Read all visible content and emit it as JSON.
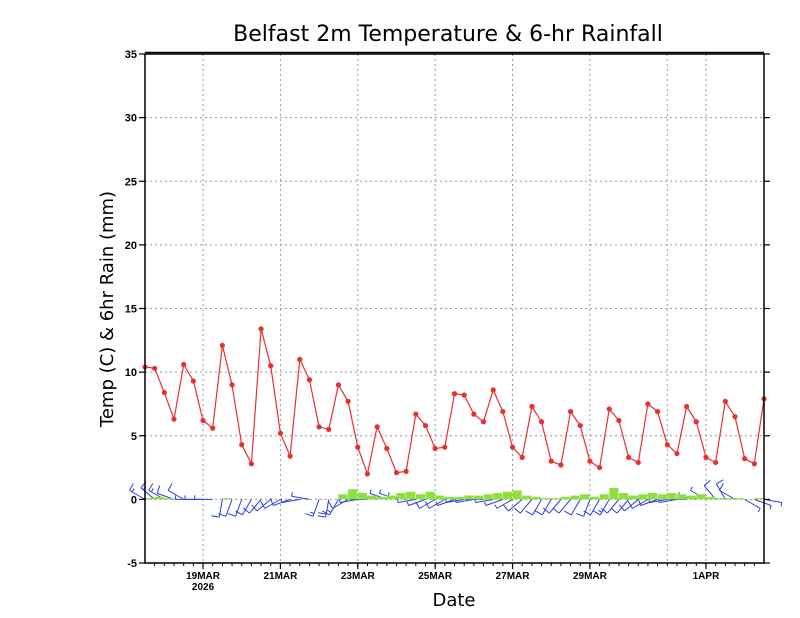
{
  "chart_data": {
    "type": "line",
    "title": "Belfast 2m Temperature & 6-hr Rainfall",
    "xlabel": "Date",
    "ylabel": "Temp (C) & 6hr Rain (mm)",
    "ylim": [
      -5,
      35
    ],
    "yticks": [
      -5,
      0,
      5,
      10,
      15,
      20,
      25,
      30,
      35
    ],
    "ytick_labels": [
      "-5",
      "0",
      "5",
      "10",
      "15",
      "20",
      "25",
      "30",
      "35"
    ],
    "x_range_days": [
      0,
      16.0
    ],
    "x_unit": "days since 17MAR 12Z",
    "xticks": [
      {
        "day": 1.5,
        "label": "19MAR",
        "sublabel": "2026"
      },
      {
        "day": 3.5,
        "label": "21MAR"
      },
      {
        "day": 5.5,
        "label": "23MAR"
      },
      {
        "day": 7.5,
        "label": "25MAR"
      },
      {
        "day": 9.5,
        "label": "27MAR"
      },
      {
        "day": 11.5,
        "label": "29MAR"
      },
      {
        "day": 14.5,
        "label": "1APR"
      }
    ],
    "grid_days": [
      1.5,
      3.5,
      5.5,
      7.5,
      9.5,
      11.5,
      13.5,
      14.5
    ],
    "temperature_series": {
      "name": "2m Temperature",
      "color": "#e8302e",
      "step_days": 0.25,
      "values": [
        10.4,
        10.3,
        8.4,
        6.3,
        10.6,
        9.3,
        6.2,
        5.6,
        12.1,
        9.0,
        4.3,
        2.8,
        13.4,
        10.5,
        5.2,
        3.4,
        11.0,
        9.4,
        5.7,
        5.5,
        9.0,
        7.7,
        4.1,
        2.0,
        5.7,
        4.0,
        2.1,
        2.2,
        6.7,
        5.8,
        4.0,
        4.1,
        8.3,
        8.2,
        6.7,
        6.1,
        8.6,
        6.9,
        4.1,
        3.3,
        7.3,
        6.1,
        3.0,
        2.7,
        6.9,
        5.8,
        3.0,
        2.5,
        7.1,
        6.2,
        3.3,
        2.9,
        7.5,
        6.9,
        4.3,
        3.6,
        7.3,
        6.1,
        3.3,
        2.9,
        7.7,
        6.5,
        3.2,
        2.8,
        7.9
      ]
    },
    "rain_series": {
      "name": "6-hr Rainfall",
      "color": "#8ee03c",
      "step_days": 0.25,
      "values": [
        0.1,
        0.2,
        0.1,
        0.0,
        0.0,
        0.0,
        0.0,
        0.0,
        0.1,
        0.0,
        0.0,
        0.0,
        0.0,
        0.0,
        0.0,
        0.0,
        0.0,
        0.0,
        0.0,
        0.0,
        0.4,
        0.8,
        0.5,
        0.3,
        0.2,
        0.3,
        0.5,
        0.6,
        0.4,
        0.6,
        0.3,
        0.2,
        0.2,
        0.3,
        0.3,
        0.4,
        0.5,
        0.6,
        0.7,
        0.3,
        0.2,
        0.1,
        0.1,
        0.2,
        0.3,
        0.4,
        0.2,
        0.4,
        0.9,
        0.5,
        0.3,
        0.4,
        0.5,
        0.4,
        0.5,
        0.4,
        0.3,
        0.4,
        0.2,
        0.1,
        0.1,
        0.1,
        0.0,
        0.1
      ]
    },
    "wind_barbs": {
      "name": "Wind barbs",
      "color": "#2a3de0",
      "baseline_value": 0,
      "step_days": 0.25,
      "direction_deg": [
        300,
        310,
        300,
        290,
        300,
        270,
        270,
        270,
        190,
        200,
        200,
        210,
        220,
        230,
        240,
        250,
        260,
        280,
        200,
        190,
        210,
        240,
        260,
        270,
        280,
        290,
        290,
        280,
        260,
        250,
        240,
        240,
        250,
        260,
        260,
        270,
        260,
        250,
        240,
        230,
        220,
        210,
        210,
        220,
        220,
        210,
        200,
        210,
        210,
        220,
        220,
        230,
        240,
        250,
        260,
        260,
        270,
        280,
        300,
        320,
        330,
        300,
        120,
        110,
        100
      ],
      "speed_kt": [
        15,
        18,
        15,
        12,
        10,
        8,
        6,
        6,
        10,
        12,
        10,
        10,
        12,
        14,
        12,
        10,
        8,
        8,
        18,
        20,
        15,
        12,
        10,
        8,
        8,
        6,
        6,
        6,
        6,
        8,
        10,
        10,
        8,
        6,
        6,
        6,
        6,
        6,
        8,
        10,
        12,
        12,
        12,
        10,
        10,
        12,
        14,
        14,
        16,
        14,
        14,
        12,
        12,
        10,
        10,
        8,
        8,
        8,
        8,
        10,
        10,
        10,
        8,
        6,
        6
      ]
    }
  }
}
